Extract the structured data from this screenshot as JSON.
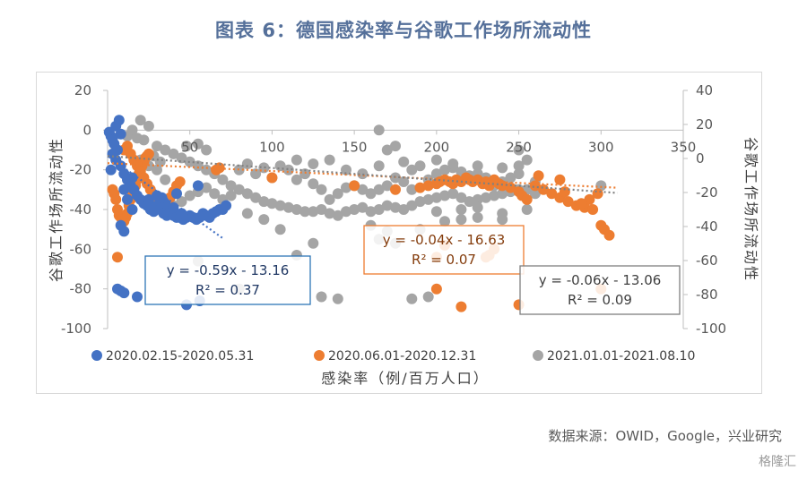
{
  "header": {
    "title": "图表 6：德国感染率与谷歌工作场所流动性"
  },
  "footer": {
    "source": "数据来源：OWID，Google，兴业研究",
    "watermark": "格隆汇"
  },
  "chart_data": {
    "type": "scatter",
    "xlabel": "感染率（例/百万人口）",
    "ylabel": "谷歌工作场所流动性",
    "ylabel_right": "谷歌工作场所流动性",
    "xlim": [
      0,
      350
    ],
    "ylim": [
      -100,
      20
    ],
    "ylim_right": [
      -100,
      40
    ],
    "x_ticks": [
      "50",
      "100",
      "150",
      "200",
      "250",
      "300",
      "350"
    ],
    "y_ticks": [
      "20",
      "0",
      "-20",
      "-40",
      "-60",
      "-80",
      "-100"
    ],
    "y_ticks_right": [
      "40",
      "20",
      "0",
      "-20",
      "-40",
      "-60",
      "-80",
      "-100"
    ],
    "legend_position": "bottom",
    "series": [
      {
        "name": "2020.02.15-2020.05.31",
        "color": "#4472c4",
        "points": [
          [
            1,
            -1
          ],
          [
            2,
            -3
          ],
          [
            3,
            -5
          ],
          [
            4,
            -7
          ],
          [
            5,
            2
          ],
          [
            6,
            -10
          ],
          [
            7,
            5
          ],
          [
            8,
            -2
          ],
          [
            3,
            -12
          ],
          [
            2,
            -20
          ],
          [
            5,
            -15
          ],
          [
            8,
            -18
          ],
          [
            10,
            -22
          ],
          [
            12,
            -25
          ],
          [
            14,
            -28
          ],
          [
            15,
            -24
          ],
          [
            16,
            -30
          ],
          [
            18,
            -33
          ],
          [
            20,
            -35
          ],
          [
            22,
            -37
          ],
          [
            24,
            -38
          ],
          [
            26,
            -40
          ],
          [
            28,
            -41
          ],
          [
            30,
            -38
          ],
          [
            32,
            -40
          ],
          [
            34,
            -42
          ],
          [
            36,
            -43
          ],
          [
            38,
            -41
          ],
          [
            40,
            -43
          ],
          [
            42,
            -44
          ],
          [
            44,
            -44
          ],
          [
            46,
            -45
          ],
          [
            48,
            -44
          ],
          [
            50,
            -43
          ],
          [
            52,
            -44
          ],
          [
            54,
            -45
          ],
          [
            56,
            -44
          ],
          [
            58,
            -42
          ],
          [
            60,
            -43
          ],
          [
            62,
            -44
          ],
          [
            64,
            -42
          ],
          [
            66,
            -41
          ],
          [
            68,
            -40
          ],
          [
            70,
            -40
          ],
          [
            72,
            -38
          ],
          [
            25,
            -35
          ],
          [
            30,
            -33
          ],
          [
            35,
            -37
          ],
          [
            40,
            -39
          ],
          [
            45,
            -42
          ],
          [
            10,
            -30
          ],
          [
            12,
            -35
          ],
          [
            15,
            -40
          ],
          [
            8,
            -48
          ],
          [
            10,
            -51
          ],
          [
            6,
            -80
          ],
          [
            8,
            -81
          ],
          [
            10,
            -82
          ],
          [
            18,
            -84
          ],
          [
            48,
            -88
          ],
          [
            56,
            -86
          ],
          [
            55,
            -28
          ],
          [
            42,
            -32
          ],
          [
            33,
            -34
          ]
        ]
      },
      {
        "name": "2020.06.01-2020.12.31",
        "color": "#ed7d31",
        "points": [
          [
            3,
            -30
          ],
          [
            4,
            -32
          ],
          [
            5,
            -35
          ],
          [
            6,
            -40
          ],
          [
            7,
            -43
          ],
          [
            8,
            -44
          ],
          [
            9,
            -45
          ],
          [
            10,
            -46
          ],
          [
            11,
            -44
          ],
          [
            12,
            -42
          ],
          [
            13,
            -38
          ],
          [
            14,
            -35
          ],
          [
            15,
            -33
          ],
          [
            16,
            -30
          ],
          [
            17,
            -28
          ],
          [
            18,
            -25
          ],
          [
            19,
            -22
          ],
          [
            20,
            -20
          ],
          [
            21,
            -18
          ],
          [
            22,
            -16
          ],
          [
            23,
            -14
          ],
          [
            24,
            -13
          ],
          [
            25,
            -12
          ],
          [
            10,
            -10
          ],
          [
            12,
            -8
          ],
          [
            14,
            -12
          ],
          [
            16,
            -15
          ],
          [
            18,
            -18
          ],
          [
            20,
            -21
          ],
          [
            22,
            -24
          ],
          [
            24,
            -27
          ],
          [
            26,
            -30
          ],
          [
            28,
            -33
          ],
          [
            30,
            -35
          ],
          [
            32,
            -36
          ],
          [
            34,
            -37
          ],
          [
            36,
            -38
          ],
          [
            38,
            -34
          ],
          [
            40,
            -31
          ],
          [
            42,
            -28
          ],
          [
            44,
            -26
          ],
          [
            6,
            -64
          ],
          [
            66,
            -20
          ],
          [
            68,
            -19
          ],
          [
            100,
            -24
          ],
          [
            150,
            -28
          ],
          [
            175,
            -30
          ],
          [
            190,
            -29
          ],
          [
            195,
            -28
          ],
          [
            200,
            -27
          ],
          [
            202,
            -26
          ],
          [
            205,
            -25
          ],
          [
            208,
            -26
          ],
          [
            210,
            -27
          ],
          [
            212,
            -25
          ],
          [
            215,
            -26
          ],
          [
            218,
            -24
          ],
          [
            220,
            -25
          ],
          [
            222,
            -26
          ],
          [
            225,
            -25
          ],
          [
            228,
            -27
          ],
          [
            230,
            -26
          ],
          [
            232,
            -28
          ],
          [
            235,
            -25
          ],
          [
            238,
            -27
          ],
          [
            240,
            -28
          ],
          [
            245,
            -29
          ],
          [
            250,
            -31
          ],
          [
            252,
            -33
          ],
          [
            255,
            -35
          ],
          [
            260,
            -28
          ],
          [
            265,
            -30
          ],
          [
            270,
            -32
          ],
          [
            275,
            -34
          ],
          [
            280,
            -36
          ],
          [
            285,
            -38
          ],
          [
            290,
            -39
          ],
          [
            295,
            -40
          ],
          [
            300,
            -48
          ],
          [
            302,
            -50
          ],
          [
            305,
            -53
          ],
          [
            298,
            -32
          ],
          [
            293,
            -35
          ],
          [
            288,
            -37
          ],
          [
            200,
            -64
          ],
          [
            205,
            -58
          ],
          [
            230,
            -64
          ],
          [
            232,
            -63
          ],
          [
            235,
            -60
          ],
          [
            200,
            -80
          ],
          [
            215,
            -89
          ],
          [
            250,
            -88
          ],
          [
            300,
            -80
          ],
          [
            262,
            -23
          ],
          [
            275,
            -25
          ],
          [
            278,
            -31
          ]
        ]
      },
      {
        "name": "2021.01.01-2021.08.10",
        "color": "#a5a5a5",
        "points": [
          [
            20,
            5
          ],
          [
            25,
            2
          ],
          [
            22,
            -5
          ],
          [
            30,
            -8
          ],
          [
            35,
            -10
          ],
          [
            40,
            -12
          ],
          [
            45,
            -14
          ],
          [
            50,
            -16
          ],
          [
            55,
            -18
          ],
          [
            60,
            -20
          ],
          [
            65,
            -22
          ],
          [
            70,
            -25
          ],
          [
            75,
            -28
          ],
          [
            80,
            -30
          ],
          [
            85,
            -32
          ],
          [
            90,
            -34
          ],
          [
            95,
            -36
          ],
          [
            100,
            -37
          ],
          [
            105,
            -38
          ],
          [
            110,
            -39
          ],
          [
            115,
            -40
          ],
          [
            120,
            -41
          ],
          [
            125,
            -41
          ],
          [
            130,
            -40
          ],
          [
            135,
            -42
          ],
          [
            140,
            -43
          ],
          [
            145,
            -41
          ],
          [
            150,
            -40
          ],
          [
            155,
            -39
          ],
          [
            160,
            -41
          ],
          [
            165,
            -40
          ],
          [
            170,
            -38
          ],
          [
            175,
            -39
          ],
          [
            180,
            -40
          ],
          [
            185,
            -38
          ],
          [
            190,
            -36
          ],
          [
            195,
            -35
          ],
          [
            200,
            -34
          ],
          [
            205,
            -33
          ],
          [
            210,
            -32
          ],
          [
            215,
            -34
          ],
          [
            220,
            -36
          ],
          [
            225,
            -35
          ],
          [
            230,
            -34
          ],
          [
            235,
            -33
          ],
          [
            240,
            -32
          ],
          [
            245,
            -31
          ],
          [
            250,
            -30
          ],
          [
            255,
            -30
          ],
          [
            260,
            -32
          ],
          [
            80,
            -20
          ],
          [
            85,
            -17
          ],
          [
            90,
            -22
          ],
          [
            95,
            -19
          ],
          [
            100,
            -24
          ],
          [
            105,
            -18
          ],
          [
            110,
            -20
          ],
          [
            115,
            -25
          ],
          [
            120,
            -22
          ],
          [
            125,
            -27
          ],
          [
            130,
            -30
          ],
          [
            135,
            -35
          ],
          [
            140,
            -32
          ],
          [
            145,
            -29
          ],
          [
            150,
            -28
          ],
          [
            155,
            -30
          ],
          [
            160,
            -32
          ],
          [
            165,
            -30
          ],
          [
            170,
            -28
          ],
          [
            175,
            -24
          ],
          [
            180,
            -26
          ],
          [
            185,
            -20
          ],
          [
            190,
            -18
          ],
          [
            195,
            -25
          ],
          [
            200,
            -22
          ],
          [
            205,
            -20
          ],
          [
            210,
            -19
          ],
          [
            215,
            -21
          ],
          [
            220,
            -23
          ],
          [
            225,
            -22
          ],
          [
            230,
            -24
          ],
          [
            235,
            -28
          ],
          [
            240,
            -26
          ],
          [
            245,
            -24
          ],
          [
            250,
            -22
          ],
          [
            40,
            -38
          ],
          [
            45,
            -36
          ],
          [
            50,
            -33
          ],
          [
            55,
            -31
          ],
          [
            60,
            -29
          ],
          [
            65,
            -32
          ],
          [
            70,
            -35
          ],
          [
            75,
            -33
          ],
          [
            115,
            -15
          ],
          [
            125,
            -17
          ],
          [
            135,
            -15
          ],
          [
            145,
            -20
          ],
          [
            155,
            -22
          ],
          [
            165,
            -18
          ],
          [
            180,
            -16
          ],
          [
            200,
            -15
          ],
          [
            210,
            -17
          ],
          [
            225,
            -18
          ],
          [
            240,
            -19
          ],
          [
            250,
            -18
          ],
          [
            255,
            -15
          ],
          [
            125,
            -57
          ],
          [
            165,
            -55
          ],
          [
            175,
            -57
          ],
          [
            105,
            -50
          ],
          [
            55,
            -66
          ],
          [
            115,
            -63
          ],
          [
            185,
            -85
          ],
          [
            195,
            -84
          ],
          [
            130,
            -84
          ],
          [
            140,
            -85
          ],
          [
            80,
            -80
          ],
          [
            20,
            -15
          ],
          [
            25,
            -18
          ],
          [
            30,
            -20
          ],
          [
            35,
            -25
          ],
          [
            28,
            -13
          ],
          [
            32,
            -16
          ],
          [
            170,
            -51
          ],
          [
            190,
            -50
          ],
          [
            160,
            -48
          ],
          [
            205,
            -46
          ],
          [
            215,
            -45
          ],
          [
            225,
            -44
          ],
          [
            240,
            -42
          ],
          [
            170,
            -10
          ],
          [
            175,
            -8
          ],
          [
            165,
            0
          ],
          [
            15,
            0
          ],
          [
            12,
            -3
          ],
          [
            18,
            -4
          ],
          [
            260,
            -26
          ],
          [
            255,
            -40
          ],
          [
            240,
            -45
          ],
          [
            300,
            -28
          ],
          [
            250,
            -10
          ],
          [
            215,
            -40
          ],
          [
            225,
            -39
          ],
          [
            200,
            -41
          ],
          [
            95,
            -45
          ],
          [
            85,
            -42
          ],
          [
            185,
            -30
          ],
          [
            60,
            -10
          ],
          [
            55,
            -7
          ],
          [
            48,
            -8
          ]
        ]
      }
    ],
    "trendlines": [
      {
        "series": "2020.02.15-2020.05.31",
        "equation": "y = -0.59x - 13.16",
        "r2": "R² = 0.37",
        "color": "#4472c4",
        "x_from": 0,
        "x_to": 70
      },
      {
        "series": "2020.06.01-2020.12.31",
        "equation": "y = -0.04x - 16.63",
        "r2": "R² = 0.07",
        "color": "#ed7d31",
        "x_from": 0,
        "x_to": 310
      },
      {
        "series": "2021.01.01-2021.08.10",
        "equation": "y = -0.06x - 13.06",
        "r2": "R² = 0.09",
        "color": "#808080",
        "x_from": 0,
        "x_to": 310
      }
    ]
  }
}
